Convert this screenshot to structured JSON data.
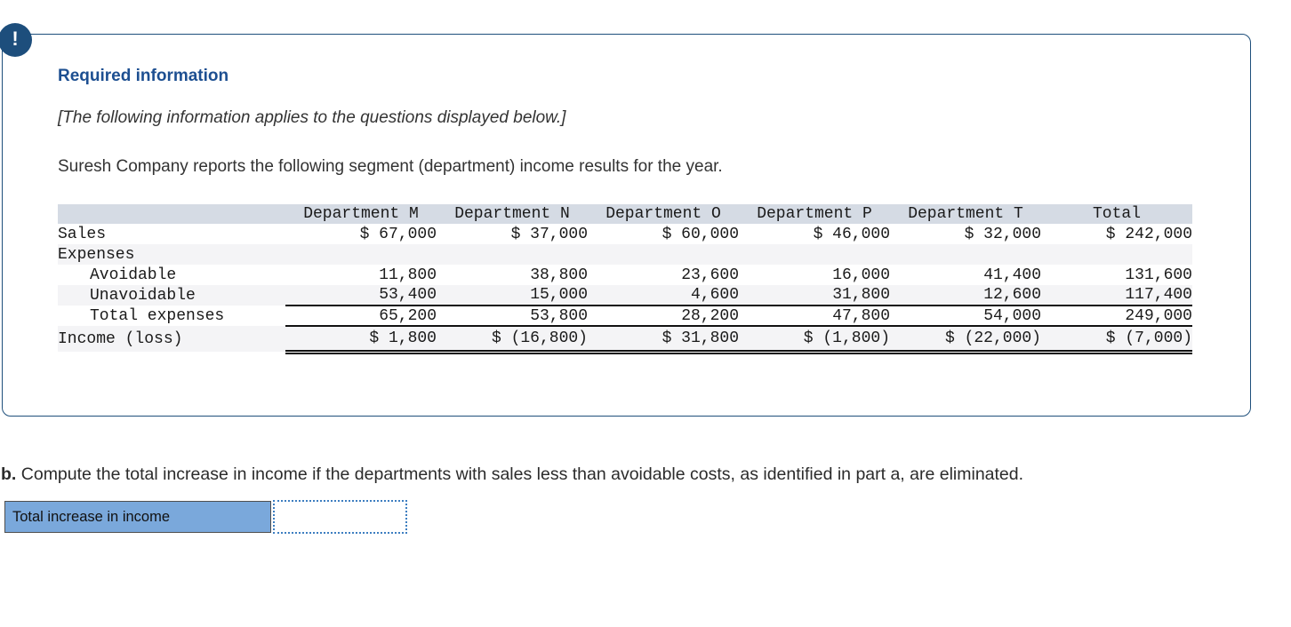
{
  "alert": {
    "icon_glyph": "!",
    "title": "Required information",
    "subtitle": "[The following information applies to the questions displayed below.]",
    "intro": "Suresh Company reports the following segment (department) income results for the year."
  },
  "table": {
    "columns": [
      "",
      "Department M",
      "Department N",
      "Department O",
      "Department P",
      "Department T",
      "Total"
    ],
    "rows": [
      {
        "label": "Sales",
        "indent": false,
        "underline": "none",
        "values": [
          "$ 67,000",
          "$ 37,000",
          "$ 60,000",
          "$ 46,000",
          "$ 32,000",
          "$ 242,000"
        ]
      },
      {
        "label": "Expenses",
        "indent": false,
        "underline": "none",
        "values": [
          "",
          "",
          "",
          "",
          "",
          ""
        ]
      },
      {
        "label": "Avoidable",
        "indent": true,
        "underline": "none",
        "values": [
          "11,800",
          "38,800",
          "23,600",
          "16,000",
          "41,400",
          "131,600"
        ]
      },
      {
        "label": "Unavoidable",
        "indent": true,
        "underline": "single",
        "values": [
          "53,400",
          "15,000",
          "4,600",
          "31,800",
          "12,600",
          "117,400"
        ]
      },
      {
        "label": "Total expenses",
        "indent": true,
        "underline": "single",
        "values": [
          "65,200",
          "53,800",
          "28,200",
          "47,800",
          "54,000",
          "249,000"
        ]
      },
      {
        "label": "Income (loss)",
        "indent": false,
        "underline": "double",
        "values": [
          "$ 1,800",
          "$ (16,800)",
          "$ 31,800",
          "$ (1,800)",
          "$ (22,000)",
          "$ (7,000)"
        ]
      }
    ]
  },
  "question": {
    "prefix": "b.",
    "text": "Compute the total increase in income if the departments with sales less than avoidable costs, as identified in part a, are eliminated."
  },
  "answer": {
    "label": "Total increase in income",
    "value": ""
  },
  "colors": {
    "panel_border": "#1e4f7b",
    "icon_bg": "#1d4e7c",
    "title_blue": "#1d4f91",
    "table_header_bg": "#d5dbe4",
    "table_alt_row_bg": "#f4f4f6",
    "answer_label_bg": "#7aa8db",
    "answer_input_border": "#3d7ec0"
  }
}
